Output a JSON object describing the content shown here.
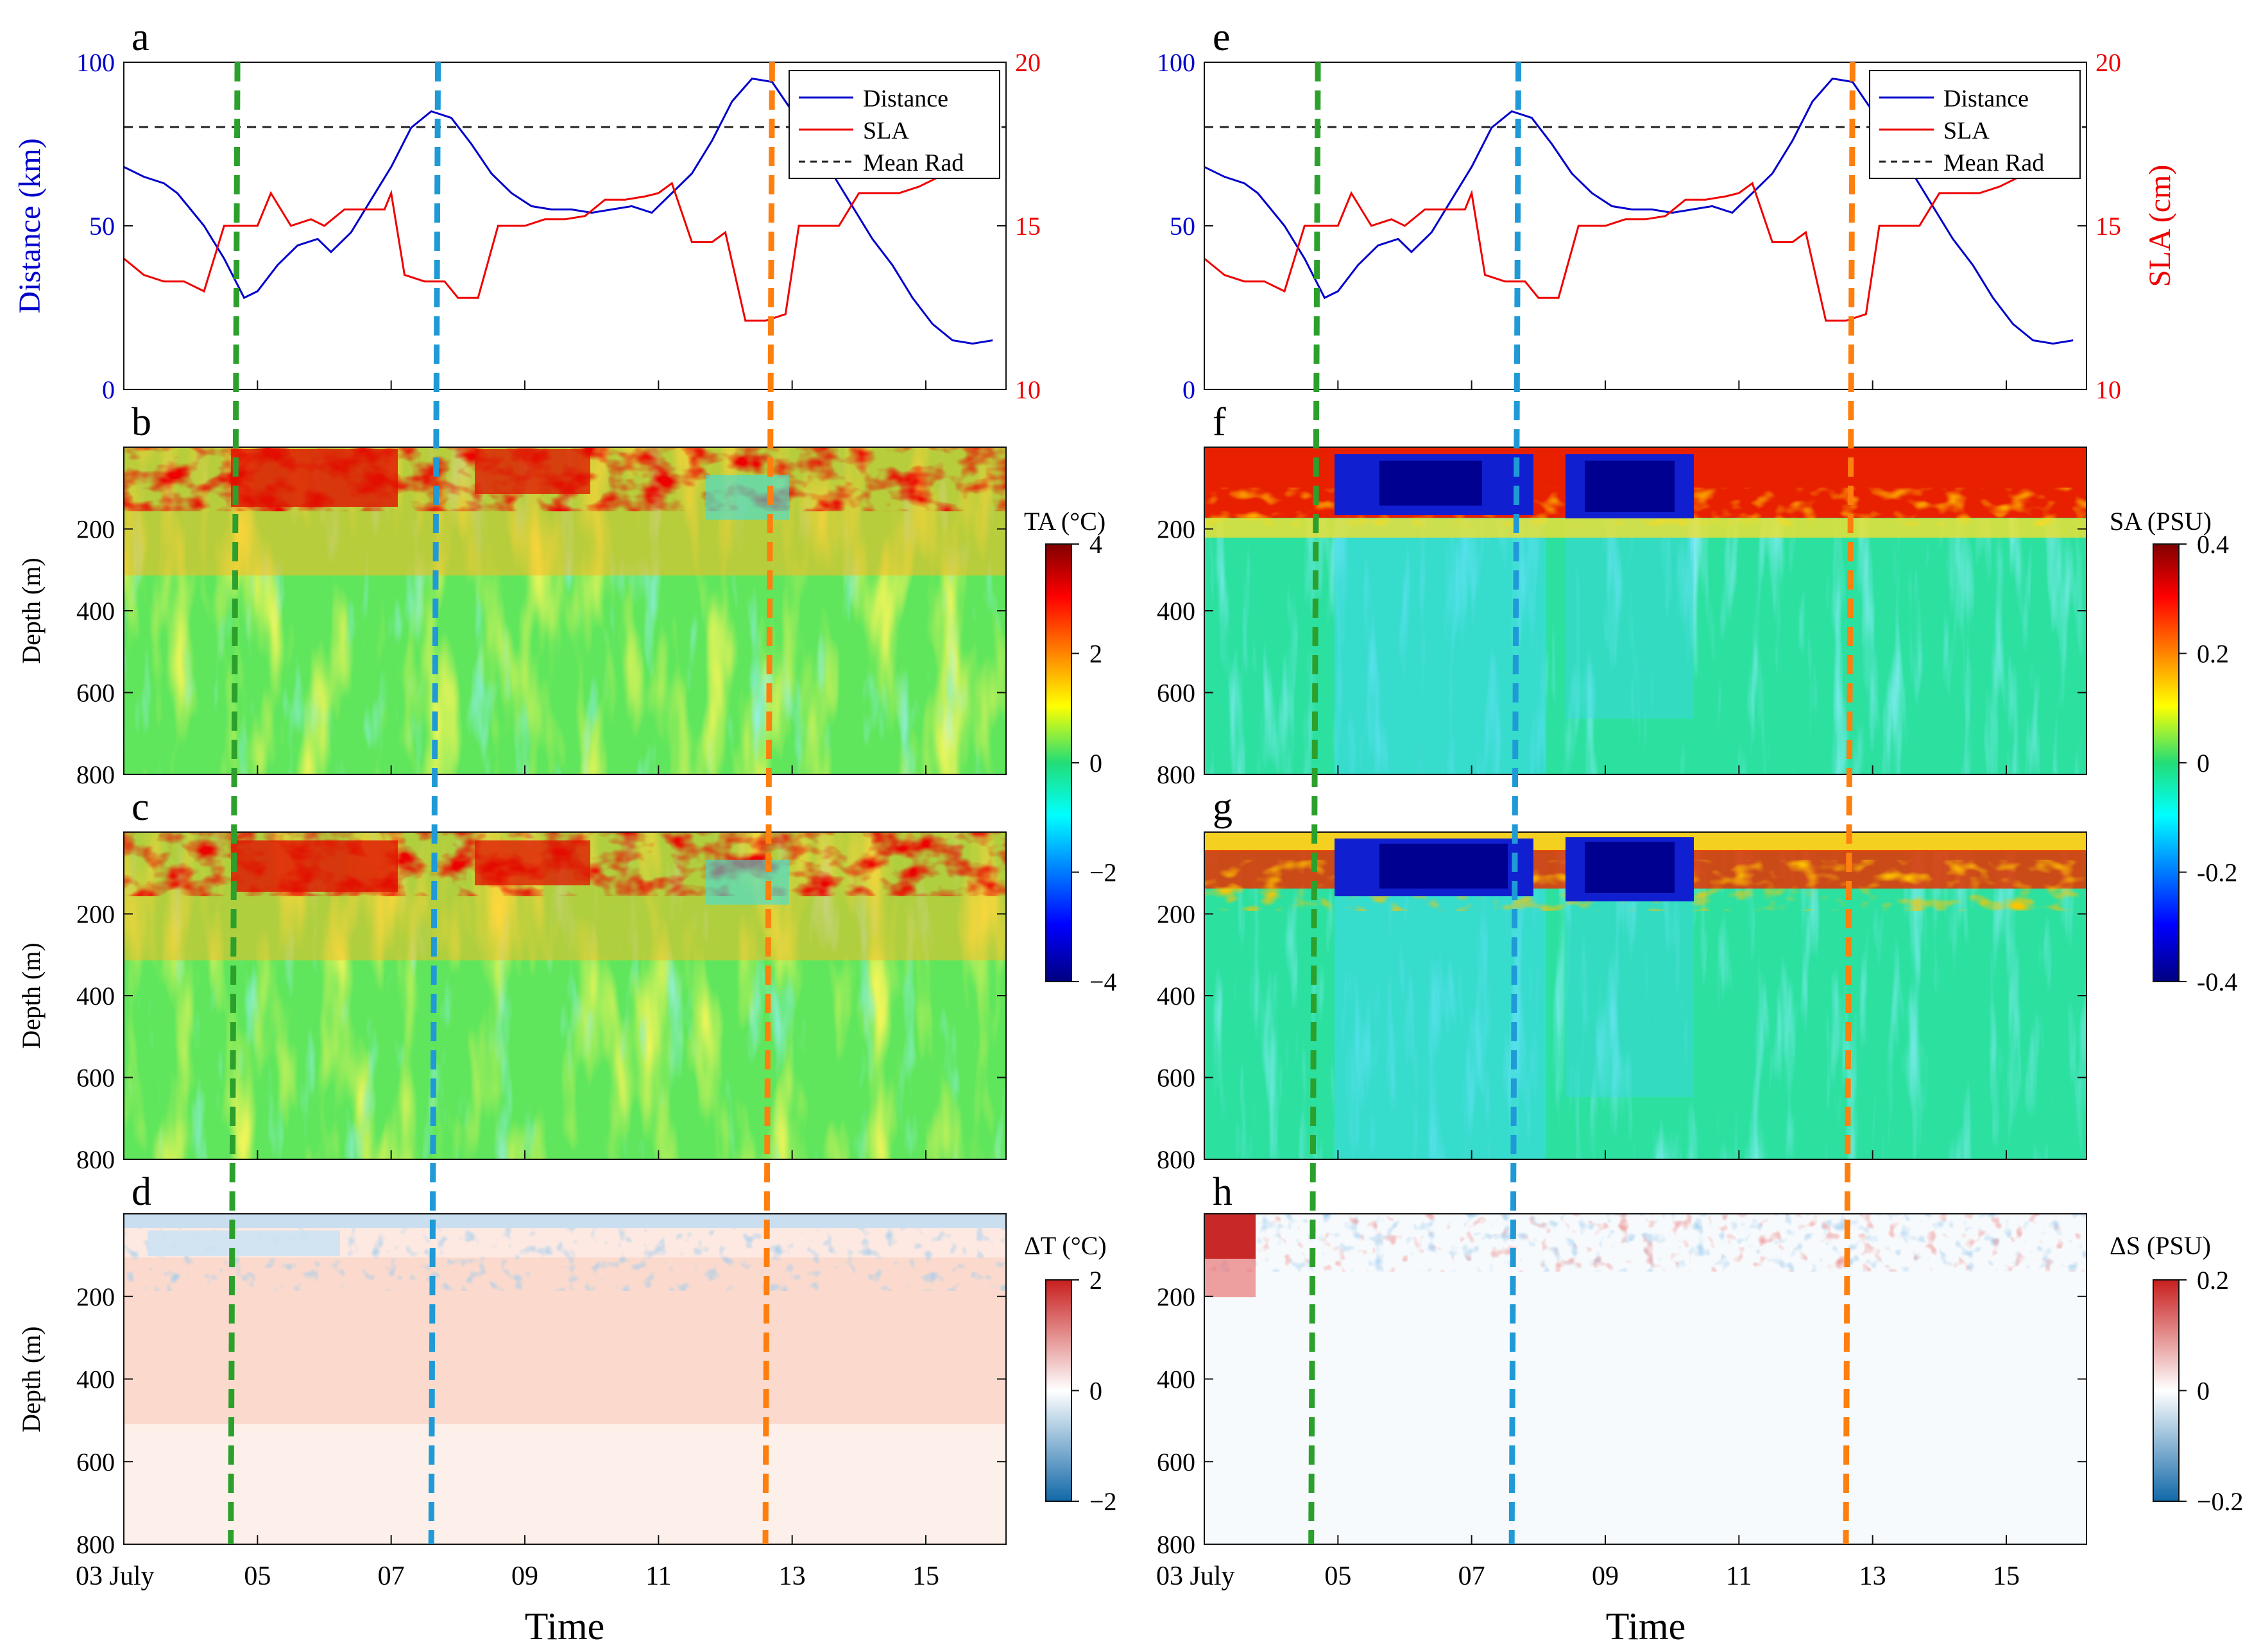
{
  "chart_data": [
    {
      "panel": "a",
      "type": "line",
      "ylabel_left": "Distance (km)",
      "ylim_left": [
        0,
        100
      ],
      "yticks_left": [
        "0",
        "50",
        "100"
      ],
      "ylabel_right": "",
      "ylim_right": [
        10,
        20
      ],
      "yticks_right": [
        "10",
        "15",
        "20"
      ],
      "legend": [
        "Distance",
        "SLA",
        "Mean Rad"
      ],
      "legend_position": "top-right",
      "mean_rad": 80,
      "series": [
        {
          "name": "Distance",
          "color": "#0000cc",
          "axis": "left",
          "x": [
            3.0,
            3.3,
            3.6,
            3.8,
            4.0,
            4.2,
            4.5,
            4.8,
            5.0,
            5.3,
            5.6,
            5.9,
            6.1,
            6.4,
            6.7,
            7.0,
            7.3,
            7.6,
            7.9,
            8.2,
            8.5,
            8.8,
            9.1,
            9.4,
            9.7,
            10.0,
            10.3,
            10.6,
            10.9,
            11.2,
            11.5,
            11.8,
            12.1,
            12.4,
            12.7,
            13.0,
            13.3,
            13.6,
            13.9,
            14.2,
            14.5,
            14.8,
            15.1,
            15.4,
            15.7,
            16.0
          ],
          "y": [
            68,
            65,
            63,
            60,
            55,
            50,
            40,
            28,
            30,
            38,
            44,
            46,
            42,
            48,
            58,
            68,
            80,
            85,
            83,
            75,
            66,
            60,
            56,
            55,
            55,
            54,
            55,
            56,
            54,
            60,
            66,
            76,
            88,
            95,
            94,
            85,
            75,
            66,
            56,
            46,
            38,
            28,
            20,
            15,
            14,
            15
          ]
        },
        {
          "name": "SLA",
          "color": "#ee0000",
          "axis": "right",
          "x": [
            3.0,
            3.3,
            3.6,
            3.9,
            4.2,
            4.5,
            4.8,
            5.0,
            5.2,
            5.5,
            5.8,
            6.0,
            6.3,
            6.6,
            6.9,
            7.0,
            7.2,
            7.5,
            7.8,
            8.0,
            8.3,
            8.6,
            8.8,
            9.0,
            9.3,
            9.6,
            9.9,
            10.2,
            10.5,
            10.8,
            11.0,
            11.2,
            11.5,
            11.8,
            12.0,
            12.3,
            12.6,
            12.9,
            13.1,
            13.4,
            13.7,
            14.0,
            14.3,
            14.6,
            14.9,
            15.2,
            15.5,
            15.8,
            16.0
          ],
          "y": [
            14.0,
            13.5,
            13.3,
            13.3,
            13.0,
            15.0,
            15.0,
            15.0,
            16.0,
            15.0,
            15.2,
            15.0,
            15.5,
            15.5,
            15.5,
            16.0,
            13.5,
            13.3,
            13.3,
            12.8,
            12.8,
            15.0,
            15.0,
            15.0,
            15.2,
            15.2,
            15.3,
            15.8,
            15.8,
            15.9,
            16.0,
            16.3,
            14.5,
            14.5,
            14.8,
            12.1,
            12.1,
            12.3,
            15.0,
            15.0,
            15.0,
            16.0,
            16.0,
            16.0,
            16.2,
            16.5,
            17.5,
            18.2,
            19.2
          ]
        }
      ]
    },
    {
      "panel": "b",
      "type": "heatmap",
      "label": "TA (°C)",
      "ylabel": "Depth (m)",
      "ylim": [
        800,
        0
      ],
      "yticks": [
        "200",
        "400",
        "600",
        "800"
      ]
    },
    {
      "panel": "c",
      "type": "heatmap",
      "ylabel": "Depth (m)",
      "ylim": [
        800,
        0
      ],
      "yticks": [
        "200",
        "400",
        "600",
        "800"
      ]
    },
    {
      "panel": "d",
      "type": "heatmap",
      "label": "ΔT (°C)",
      "ylabel": "Depth (m)",
      "ylim": [
        800,
        0
      ],
      "yticks": [
        "200",
        "400",
        "600",
        "800"
      ]
    },
    {
      "panel": "e",
      "type": "line",
      "ylabel_left": "",
      "ylim_left": [
        0,
        100
      ],
      "yticks_left": [
        "0",
        "50",
        "100"
      ],
      "ylabel_right": "SLA (cm)",
      "ylim_right": [
        10,
        20
      ],
      "yticks_right": [
        "10",
        "15",
        "20"
      ],
      "legend": [
        "Distance",
        "SLA",
        "Mean Rad"
      ],
      "legend_position": "top-right",
      "mean_rad": 80
    },
    {
      "panel": "f",
      "type": "heatmap",
      "label": "SA (PSU)",
      "ylabel": "",
      "ylim": [
        800,
        0
      ],
      "yticks": [
        "200",
        "400",
        "600",
        "800"
      ]
    },
    {
      "panel": "g",
      "type": "heatmap",
      "ylabel": "",
      "ylim": [
        800,
        0
      ],
      "yticks": [
        "200",
        "400",
        "600",
        "800"
      ]
    },
    {
      "panel": "h",
      "type": "heatmap",
      "label": "ΔS (PSU)",
      "ylabel": "",
      "ylim": [
        800,
        0
      ],
      "yticks": [
        "200",
        "400",
        "600",
        "800"
      ]
    }
  ],
  "colorbars": {
    "jet_T": {
      "ticks": [
        "4",
        "2",
        "0",
        "−2",
        "−4"
      ]
    },
    "jet_S": {
      "ticks": [
        "0.4",
        "0.2",
        "0",
        "-0.2",
        "-0.4"
      ]
    },
    "div_T": {
      "ticks": [
        "2",
        "0",
        "−2"
      ]
    },
    "div_S": {
      "ticks": [
        "0.2",
        "0",
        "−0.2"
      ]
    }
  },
  "xaxis": {
    "ticks": [
      "03 July",
      "05",
      "07",
      "09",
      "11",
      "13",
      "15"
    ],
    "values": [
      3,
      5,
      7,
      9,
      11,
      13,
      15
    ],
    "xlim": [
      3,
      16.2
    ],
    "label": "Time"
  },
  "markers": [
    {
      "color": "#2ca02c",
      "top_day": 4.7,
      "bottom_day": 4.6
    },
    {
      "color": "#1f9ad6",
      "top_day": 7.7,
      "bottom_day": 7.6
    },
    {
      "color": "#ff7f0e",
      "top_day": 12.7,
      "bottom_day": 12.6
    }
  ]
}
